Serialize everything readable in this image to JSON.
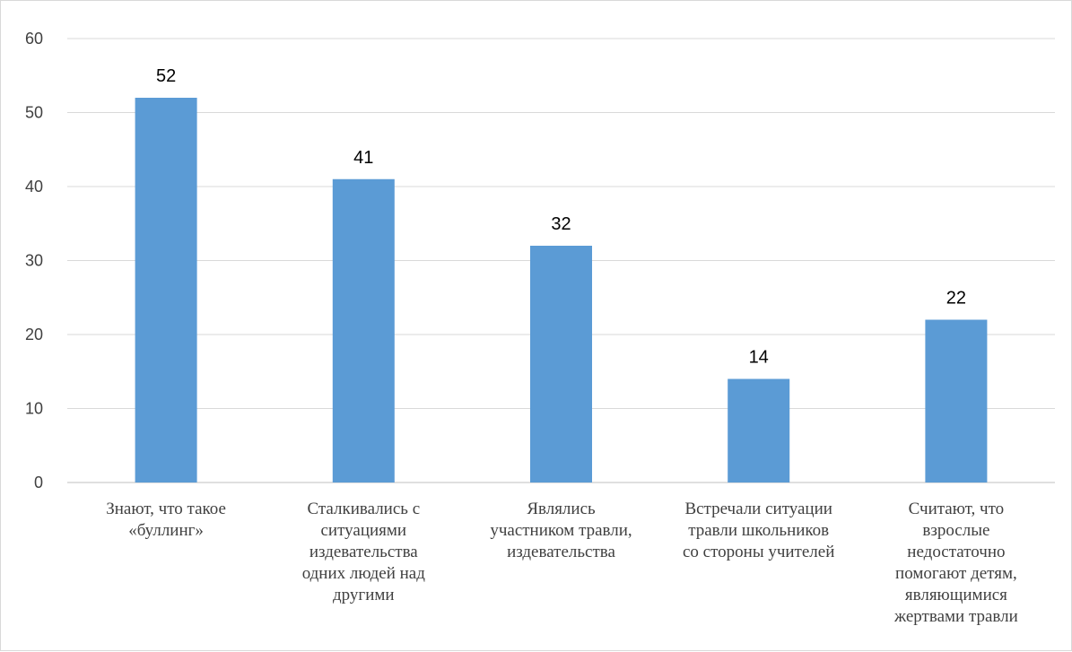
{
  "chart_data": {
    "type": "bar",
    "categories": [
      [
        "Знают, что такое",
        "«буллинг»"
      ],
      [
        "Сталкивались с",
        "ситуациями",
        "издевательства",
        "одних людей над",
        "другими"
      ],
      [
        "Являлись",
        "участником травли,",
        "издевательства"
      ],
      [
        "Встречали ситуации",
        "травли школьников",
        "со стороны учителей"
      ],
      [
        "Считают, что",
        "взрослые",
        "недостаточно",
        "помогают детям,",
        "являющимися",
        "жертвами травли"
      ]
    ],
    "values": [
      52,
      41,
      32,
      14,
      22
    ],
    "ylim": [
      0,
      60
    ],
    "yticks": [
      0,
      10,
      20,
      30,
      40,
      50,
      60
    ],
    "grid": true,
    "data_labels": true,
    "colors": {
      "bar": "#5b9bd5",
      "grid": "#d9d9d9",
      "axis": "#bfbfbf",
      "text": "#404040"
    }
  }
}
